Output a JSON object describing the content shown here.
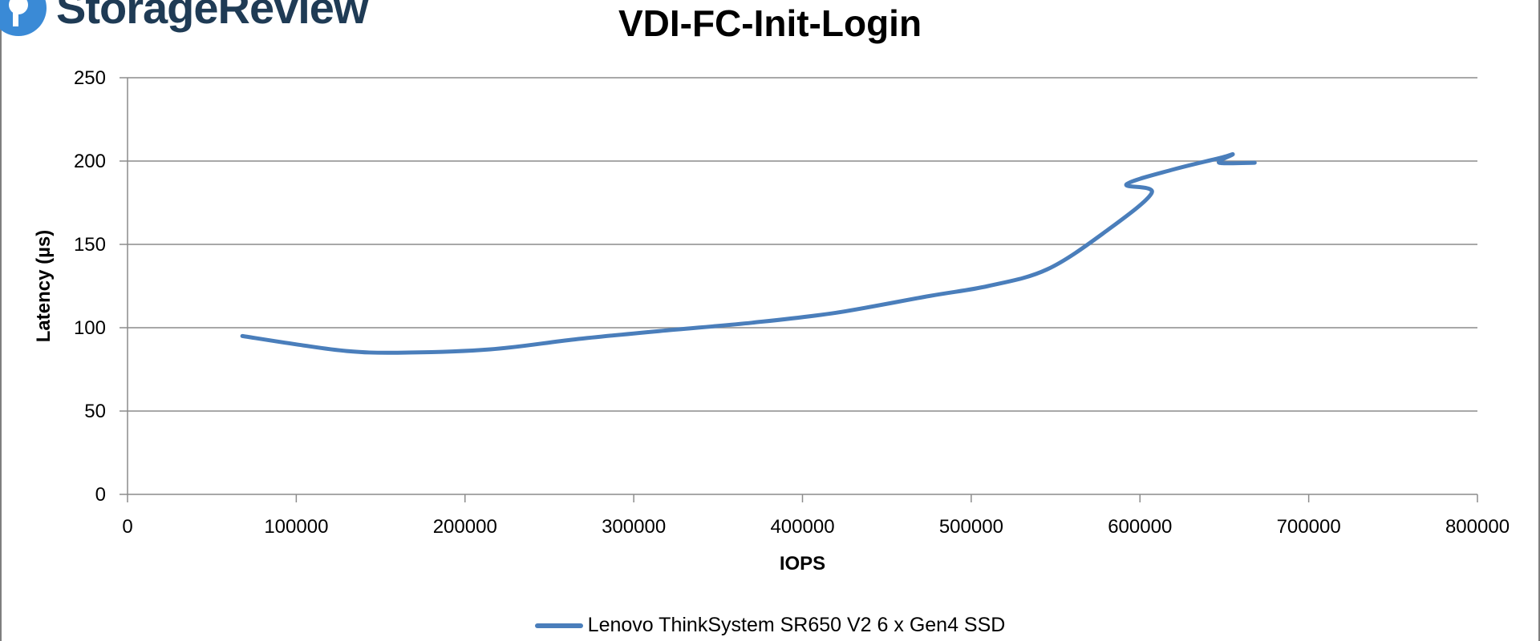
{
  "brand": {
    "name": "StorageReview",
    "logo_icon": "storagereview-logo-icon",
    "color": "#1f3b55",
    "accent": "#3a8ad6"
  },
  "chart_data": {
    "type": "line",
    "title": "VDI-FC-Init-Login",
    "xlabel": "IOPS",
    "ylabel": "Latency (µs)",
    "xlim": [
      0,
      800000
    ],
    "ylim": [
      0,
      250
    ],
    "x_ticks": [
      0,
      100000,
      200000,
      300000,
      400000,
      500000,
      600000,
      700000,
      800000
    ],
    "x_tick_labels": [
      "0",
      "100000",
      "200000",
      "300000",
      "400000",
      "500000",
      "600000",
      "700000",
      "800000"
    ],
    "y_ticks": [
      0,
      50,
      100,
      150,
      200,
      250
    ],
    "y_tick_labels": [
      "0",
      "50",
      "100",
      "150",
      "200",
      "250"
    ],
    "grid": true,
    "legend_position": "bottom",
    "series": [
      {
        "name": "Lenovo ThinkSystem SR650 V2 6 x Gen4 SSD",
        "color": "#4a7ebb",
        "x": [
          68000,
          100000,
          130000,
          160000,
          215000,
          265000,
          315000,
          370000,
          420000,
          475000,
          510000,
          545000,
          580000,
          607000,
          592000,
          620000,
          648000,
          655000,
          647000,
          668000
        ],
        "y": [
          95,
          90,
          86,
          85,
          87,
          93,
          98,
          103,
          109,
          119,
          125,
          135,
          158,
          181,
          186,
          195,
          202,
          204,
          199,
          199
        ]
      }
    ]
  }
}
